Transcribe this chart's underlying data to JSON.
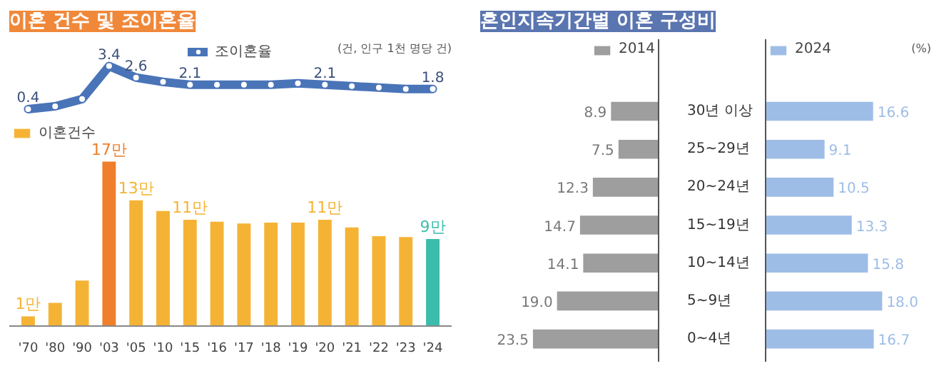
{
  "chart_data": [
    {
      "type": "line",
      "title": "이혼 건수 및 조이혼율",
      "annotations": [
        "(건, 인구 1천 명당 건)"
      ],
      "categories": [
        null,
        null,
        null,
        null,
        null,
        null,
        null,
        null,
        null,
        null,
        null,
        null,
        null,
        null,
        null,
        null
      ],
      "tick_labels": false,
      "grid": false,
      "legend": "top",
      "marker": "circle",
      "series": [
        {
          "name": "조이혼율",
          "color": "#4a74b8",
          "values": [
            0.4,
            0.6,
            1.1,
            3.4,
            2.6,
            2.3,
            2.1,
            2.1,
            2.1,
            2.1,
            2.2,
            2.1,
            2.0,
            1.9,
            1.8,
            1.8
          ],
          "value_labels": [
            "0.4",
            null,
            null,
            "3.4",
            "2.6",
            null,
            "2.1",
            null,
            null,
            null,
            null,
            "2.1",
            null,
            null,
            null,
            "1.8"
          ]
        }
      ]
    },
    {
      "type": "bar",
      "categories": [
        "'70",
        "'80",
        "'90",
        "'03",
        "'05",
        "'10",
        "'15",
        "'16",
        "'17",
        "'18",
        "'19",
        "'20",
        "'21",
        "'22",
        "'23",
        "'24"
      ],
      "tick_labels": "x",
      "grid": false,
      "legend": "top left",
      "series": [
        {
          "name": "이혼건수",
          "colors": [
            "#f5b335",
            "#f5b335",
            "#f5b335",
            "#ef7f2a",
            "#f5b335",
            "#f5b335",
            "#f5b335",
            "#f5b335",
            "#f5b335",
            "#f5b335",
            "#f5b335",
            "#f5b335",
            "#f5b335",
            "#f5b335",
            "#f5b335",
            "#3cbcab"
          ],
          "values": [
            1,
            2.4,
            4.7,
            17,
            13,
            11.9,
            11,
            10.8,
            10.6,
            10.7,
            10.7,
            11,
            10.2,
            9.3,
            9.2,
            9
          ],
          "value_labels": [
            "1만",
            null,
            null,
            "17만",
            "13만",
            null,
            "11만",
            null,
            null,
            null,
            null,
            "11만",
            null,
            null,
            null,
            "9만"
          ]
        }
      ]
    },
    {
      "type": "bar",
      "orientation": "horizontal",
      "title": "혼인지속기간별 이혼 구성비",
      "categories": [
        "30년 이상",
        "25~29년",
        "20~24년",
        "15~19년",
        "10~14년",
        "5~9년",
        "0~4년"
      ],
      "tick_labels": "y",
      "legend": "top right",
      "grid": false,
      "series": [
        {
          "name": "2014",
          "color": "#9e9e9e",
          "values": [
            8.9,
            7.5,
            12.3,
            14.7,
            14.1,
            19.0,
            23.5
          ],
          "value_labels": [
            "8.9",
            "7.5",
            "12.3",
            "14.7",
            "14.1",
            "19.0",
            "23.5"
          ]
        }
      ]
    },
    {
      "type": "bar",
      "orientation": "horizontal",
      "annotations": [
        "(%)"
      ],
      "categories": [
        null,
        null,
        null,
        null,
        null,
        null,
        null
      ],
      "tick_labels": false,
      "legend": "top left",
      "grid": false,
      "series": [
        {
          "name": "2024",
          "color": "#9dbde6",
          "values": [
            16.6,
            9.1,
            10.5,
            13.3,
            15.8,
            18.0,
            16.7
          ],
          "value_labels": [
            "16.6",
            "9.1",
            "10.5",
            "13.3",
            "15.8",
            "18.0",
            "16.7"
          ]
        }
      ]
    }
  ]
}
